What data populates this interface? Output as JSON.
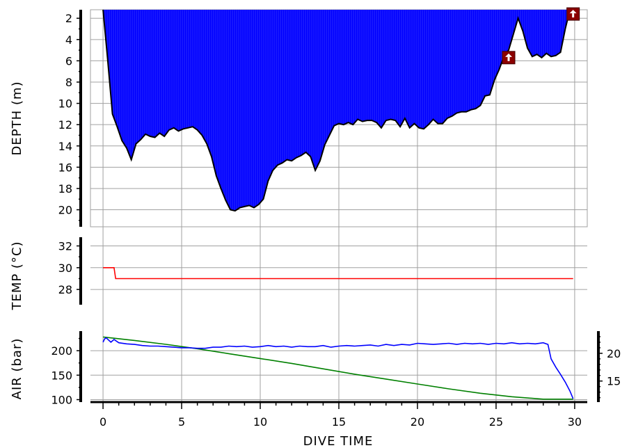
{
  "chart_data": {
    "type": "area",
    "xlabel": "DIVE TIME",
    "x_ticks": [
      0,
      5,
      10,
      15,
      20,
      25,
      30
    ],
    "xlim": [
      -0.8,
      30.8
    ],
    "grid": true,
    "depth": {
      "ylabel": "DEPTH (m)",
      "ylim": [
        1.2,
        21.6
      ],
      "inverted": true,
      "ticks": [
        2,
        4,
        6,
        8,
        10,
        12,
        14,
        16,
        18,
        20
      ],
      "fill_color": "#0000ff",
      "line_color": "#000000",
      "series": {
        "x": [
          0,
          0.3,
          0.6,
          0.9,
          1.2,
          1.5,
          1.8,
          2.1,
          2.4,
          2.7,
          3.0,
          3.3,
          3.6,
          3.9,
          4.2,
          4.5,
          4.8,
          5.1,
          5.4,
          5.7,
          6.0,
          6.3,
          6.6,
          6.9,
          7.2,
          7.5,
          7.8,
          8.1,
          8.4,
          8.7,
          9.0,
          9.3,
          9.6,
          9.9,
          10.2,
          10.5,
          10.8,
          11.1,
          11.4,
          11.7,
          12.0,
          12.3,
          12.6,
          12.9,
          13.2,
          13.5,
          13.8,
          14.1,
          14.4,
          14.7,
          15.0,
          15.3,
          15.6,
          15.9,
          16.2,
          16.5,
          16.8,
          17.1,
          17.4,
          17.7,
          18.0,
          18.3,
          18.6,
          18.9,
          19.2,
          19.5,
          19.8,
          20.1,
          20.4,
          20.7,
          21.0,
          21.3,
          21.6,
          21.9,
          22.2,
          22.5,
          22.8,
          23.1,
          23.4,
          23.7,
          24.0,
          24.3,
          24.6,
          24.9,
          25.2,
          25.5,
          25.8,
          26.1,
          26.4,
          26.7,
          27.0,
          27.3,
          27.6,
          27.9,
          28.2,
          28.5,
          28.8,
          29.1,
          29.4,
          29.7
        ],
        "y": [
          1.2,
          6.0,
          11.0,
          12.2,
          13.5,
          14.2,
          15.3,
          13.8,
          13.4,
          12.9,
          13.1,
          13.2,
          12.8,
          13.1,
          12.5,
          12.3,
          12.6,
          12.4,
          12.3,
          12.2,
          12.5,
          13.0,
          13.8,
          15.0,
          16.8,
          18.0,
          19.1,
          20.0,
          20.1,
          19.8,
          19.7,
          19.6,
          19.8,
          19.5,
          19.0,
          17.3,
          16.3,
          15.8,
          15.6,
          15.3,
          15.4,
          15.1,
          14.9,
          14.6,
          15.0,
          16.3,
          15.4,
          13.9,
          13.0,
          12.1,
          11.9,
          12.0,
          11.8,
          12.0,
          11.5,
          11.7,
          11.6,
          11.6,
          11.8,
          12.3,
          11.6,
          11.5,
          11.6,
          12.2,
          11.4,
          12.3,
          11.9,
          12.3,
          12.4,
          12.0,
          11.5,
          11.9,
          11.9,
          11.4,
          11.2,
          10.9,
          10.8,
          10.8,
          10.6,
          10.5,
          10.2,
          9.3,
          9.2,
          7.8,
          6.8,
          5.6,
          5.0,
          3.5,
          2.0,
          3.2,
          4.8,
          5.6,
          5.4,
          5.7,
          5.3,
          5.6,
          5.5,
          5.2,
          3.0,
          1.2
        ]
      }
    },
    "temp": {
      "ylabel": "TEMP (°C)",
      "ylim": [
        26.6,
        32.8
      ],
      "ticks": [
        28,
        30,
        32
      ],
      "line_color": "#ff0000",
      "series": {
        "x": [
          0,
          0.7,
          0.8,
          29.9
        ],
        "y": [
          30.0,
          30.0,
          29.0,
          29.0
        ]
      }
    },
    "air": {
      "ylabel": "AIR (bar)",
      "ylim": [
        95,
        240
      ],
      "ticks": [
        100,
        150,
        200
      ],
      "right_ticks": [
        15,
        20
      ],
      "right_ylim": [
        11.2,
        24.0
      ],
      "series": [
        {
          "color": "#008000",
          "x": [
            0,
            2,
            4,
            6,
            8,
            10,
            12,
            14,
            16,
            18,
            20,
            22,
            24,
            26,
            28,
            29.9
          ],
          "y": [
            228,
            221,
            213,
            204,
            194,
            184,
            174,
            163,
            152,
            142,
            132,
            122,
            113,
            106,
            101,
            101
          ]
        },
        {
          "color": "#0000ff",
          "x": [
            0,
            0.1,
            0.2,
            0.35,
            0.5,
            0.7,
            1.0,
            1.5,
            2.0,
            2.5,
            3.0,
            3.5,
            4.0,
            4.5,
            5.0,
            5.5,
            6.0,
            6.5,
            7.0,
            7.5,
            8.0,
            8.5,
            9.0,
            9.5,
            10.0,
            10.5,
            11.0,
            11.5,
            12.0,
            12.5,
            13.0,
            13.5,
            14.0,
            14.5,
            15.0,
            15.5,
            16.0,
            16.5,
            17.0,
            17.5,
            18.0,
            18.5,
            19.0,
            19.5,
            20.0,
            20.5,
            21.0,
            21.5,
            22.0,
            22.5,
            23.0,
            23.5,
            24.0,
            24.5,
            25.0,
            25.5,
            26.0,
            26.5,
            27.0,
            27.5,
            28.0,
            28.3,
            28.5,
            28.8,
            29.1,
            29.4,
            29.7,
            29.9
          ],
          "y": [
            22.0,
            22.6,
            22.8,
            22.4,
            22.0,
            22.5,
            21.9,
            21.7,
            21.6,
            21.4,
            21.3,
            21.3,
            21.2,
            21.1,
            21.0,
            21.0,
            20.9,
            20.9,
            21.1,
            21.1,
            21.3,
            21.2,
            21.3,
            21.1,
            21.2,
            21.4,
            21.2,
            21.3,
            21.1,
            21.3,
            21.2,
            21.2,
            21.4,
            21.1,
            21.3,
            21.4,
            21.3,
            21.4,
            21.5,
            21.3,
            21.6,
            21.4,
            21.6,
            21.5,
            21.8,
            21.7,
            21.6,
            21.7,
            21.8,
            21.6,
            21.8,
            21.7,
            21.8,
            21.6,
            21.8,
            21.7,
            21.9,
            21.7,
            21.8,
            21.7,
            21.9,
            21.6,
            19.0,
            17.5,
            16.2,
            14.8,
            13.2,
            11.8
          ]
        }
      ]
    },
    "markers": [
      {
        "icon": "ascent-warning-icon",
        "x": 25.8,
        "depth": 5.7,
        "color": "#8b0000"
      },
      {
        "icon": "ascent-warning-icon",
        "x": 29.9,
        "depth": 1.6,
        "color": "#8b0000"
      }
    ]
  }
}
